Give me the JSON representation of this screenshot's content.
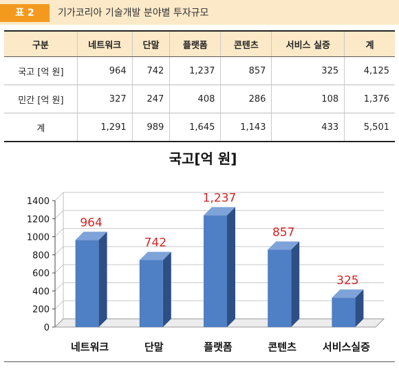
{
  "caption": {
    "tag": "표 2",
    "title": "기가코리아 기술개발 분야별 투자규모"
  },
  "table": {
    "headers": [
      "구분",
      "네트워크",
      "단말",
      "플랫폼",
      "콘텐츠",
      "서비스 실증",
      "계"
    ],
    "rows": [
      {
        "label": "국고 [억 원]",
        "cells": [
          "964",
          "742",
          "1,237",
          "857",
          "325",
          "4,125"
        ]
      },
      {
        "label": "민간 [억 원]",
        "cells": [
          "327",
          "247",
          "408",
          "286",
          "108",
          "1,376"
        ]
      },
      {
        "label": "계",
        "cells": [
          "1,291",
          "989",
          "1,645",
          "1,143",
          "433",
          "5,501"
        ]
      }
    ]
  },
  "colors": {
    "bar": "#4f7fc4",
    "bar_side": "#2e4f85",
    "bar_top": "#7ea3d8",
    "data_label": "#d42424",
    "caption_tag": "#f39a1e",
    "caption_bg": "#fbe9c8"
  },
  "chart_data": {
    "type": "bar",
    "title": "국고[억 원]",
    "categories": [
      "네트워크",
      "단말",
      "플랫폼",
      "콘텐츠",
      "서비스실증"
    ],
    "values": [
      964,
      742,
      1237,
      857,
      325
    ],
    "data_labels": [
      "964",
      "742",
      "1,237",
      "857",
      "325"
    ],
    "ylim": [
      0,
      1400
    ],
    "yticks": [
      "0",
      "200",
      "400",
      "600",
      "800",
      "1000",
      "1200",
      "1400"
    ],
    "grid": true,
    "legend": "none",
    "style": "3d-column"
  }
}
